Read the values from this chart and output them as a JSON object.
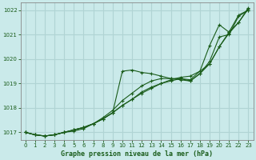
{
  "xlabel": "Graphe pression niveau de la mer (hPa)",
  "ylim": [
    1016.7,
    1022.3
  ],
  "xlim": [
    -0.5,
    23.5
  ],
  "yticks": [
    1017,
    1018,
    1019,
    1020,
    1021,
    1022
  ],
  "xticks": [
    0,
    1,
    2,
    3,
    4,
    5,
    6,
    7,
    8,
    9,
    10,
    11,
    12,
    13,
    14,
    15,
    16,
    17,
    18,
    19,
    20,
    21,
    22,
    23
  ],
  "bg_color": "#caeaea",
  "grid_color": "#b0d4d4",
  "line_color": "#1a5c1a",
  "series": [
    [
      1017.0,
      1016.9,
      1016.85,
      1016.9,
      1017.0,
      1017.1,
      1017.2,
      1017.35,
      1017.55,
      1017.8,
      1018.1,
      1018.35,
      1018.6,
      1018.8,
      1019.0,
      1019.15,
      1019.25,
      1019.3,
      1019.5,
      1019.8,
      1020.5,
      1021.1,
      1021.5,
      1022.1
    ],
    [
      1017.0,
      1016.9,
      1016.85,
      1016.9,
      1017.0,
      1017.1,
      1017.2,
      1017.35,
      1017.55,
      1017.8,
      1019.5,
      1019.55,
      1019.45,
      1019.4,
      1019.3,
      1019.2,
      1019.15,
      1019.1,
      1019.4,
      1019.8,
      1020.5,
      1021.05,
      1021.5,
      1022.05
    ],
    [
      1017.0,
      1016.9,
      1016.85,
      1016.9,
      1017.0,
      1017.1,
      1017.2,
      1017.35,
      1017.6,
      1017.9,
      1018.3,
      1018.6,
      1018.9,
      1019.1,
      1019.2,
      1019.2,
      1019.2,
      1019.15,
      1019.5,
      1020.55,
      1021.4,
      1021.1,
      1021.8,
      1022.0
    ],
    [
      1017.0,
      1016.9,
      1016.85,
      1016.9,
      1017.0,
      1017.05,
      1017.15,
      1017.35,
      1017.55,
      1017.8,
      1018.1,
      1018.35,
      1018.65,
      1018.85,
      1019.0,
      1019.1,
      1019.2,
      1019.1,
      1019.4,
      1019.9,
      1020.9,
      1021.0,
      1021.75,
      1022.0
    ]
  ]
}
